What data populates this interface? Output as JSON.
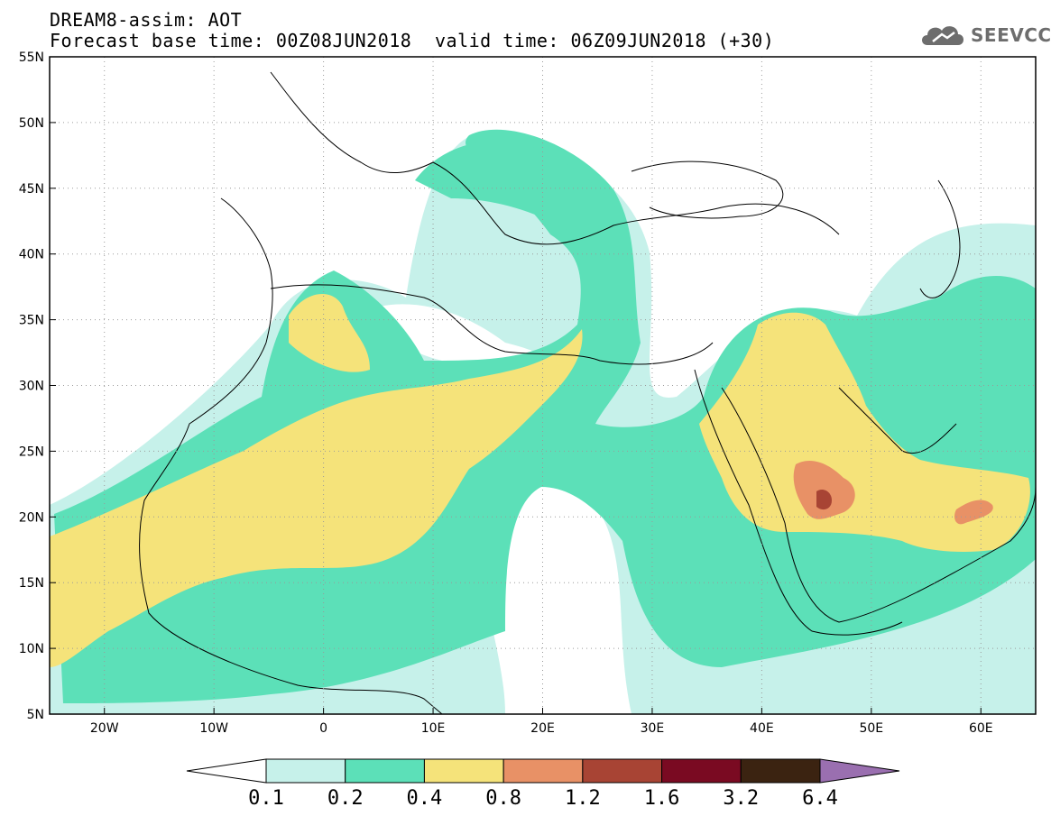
{
  "header": {
    "title": "DREAM8-assim: AOT",
    "forecast_base": "Forecast base time: 00Z08JUN2018",
    "valid_time": "valid time: 06Z09JUN2018 (+30)"
  },
  "logo": {
    "text": "SEEVCCC",
    "icon": "cloud-logo-icon",
    "color": "#6d6d6d"
  },
  "map": {
    "extent": {
      "lon": [
        -25,
        65
      ],
      "lat": [
        5,
        55
      ]
    },
    "lat_ticks": [
      {
        "lat": 55,
        "label": "55N"
      },
      {
        "lat": 50,
        "label": "50N"
      },
      {
        "lat": 45,
        "label": "45N"
      },
      {
        "lat": 40,
        "label": "40N"
      },
      {
        "lat": 35,
        "label": "35N"
      },
      {
        "lat": 30,
        "label": "30N"
      },
      {
        "lat": 25,
        "label": "25N"
      },
      {
        "lat": 20,
        "label": "20N"
      },
      {
        "lat": 15,
        "label": "15N"
      },
      {
        "lat": 10,
        "label": "10N"
      },
      {
        "lat": 5,
        "label": "5N"
      }
    ],
    "lon_ticks": [
      {
        "lon": -20,
        "label": "20W"
      },
      {
        "lon": -10,
        "label": "10W"
      },
      {
        "lon": 0,
        "label": "0"
      },
      {
        "lon": 10,
        "label": "10E"
      },
      {
        "lon": 20,
        "label": "20E"
      },
      {
        "lon": 30,
        "label": "30E"
      },
      {
        "lon": 40,
        "label": "40E"
      },
      {
        "lon": 50,
        "label": "50E"
      },
      {
        "lon": 60,
        "label": "60E"
      }
    ],
    "grid": "dotted"
  },
  "colorbar": {
    "levels": [
      "0.1",
      "0.2",
      "0.4",
      "0.8",
      "1.2",
      "1.6",
      "3.2",
      "6.4"
    ],
    "colors": [
      "#ffffff",
      "#c6f1ea",
      "#5ce0b8",
      "#f5e37a",
      "#e89166",
      "#a84434",
      "#7a0a22",
      "#3b2311",
      "#9a6fb0"
    ]
  }
}
